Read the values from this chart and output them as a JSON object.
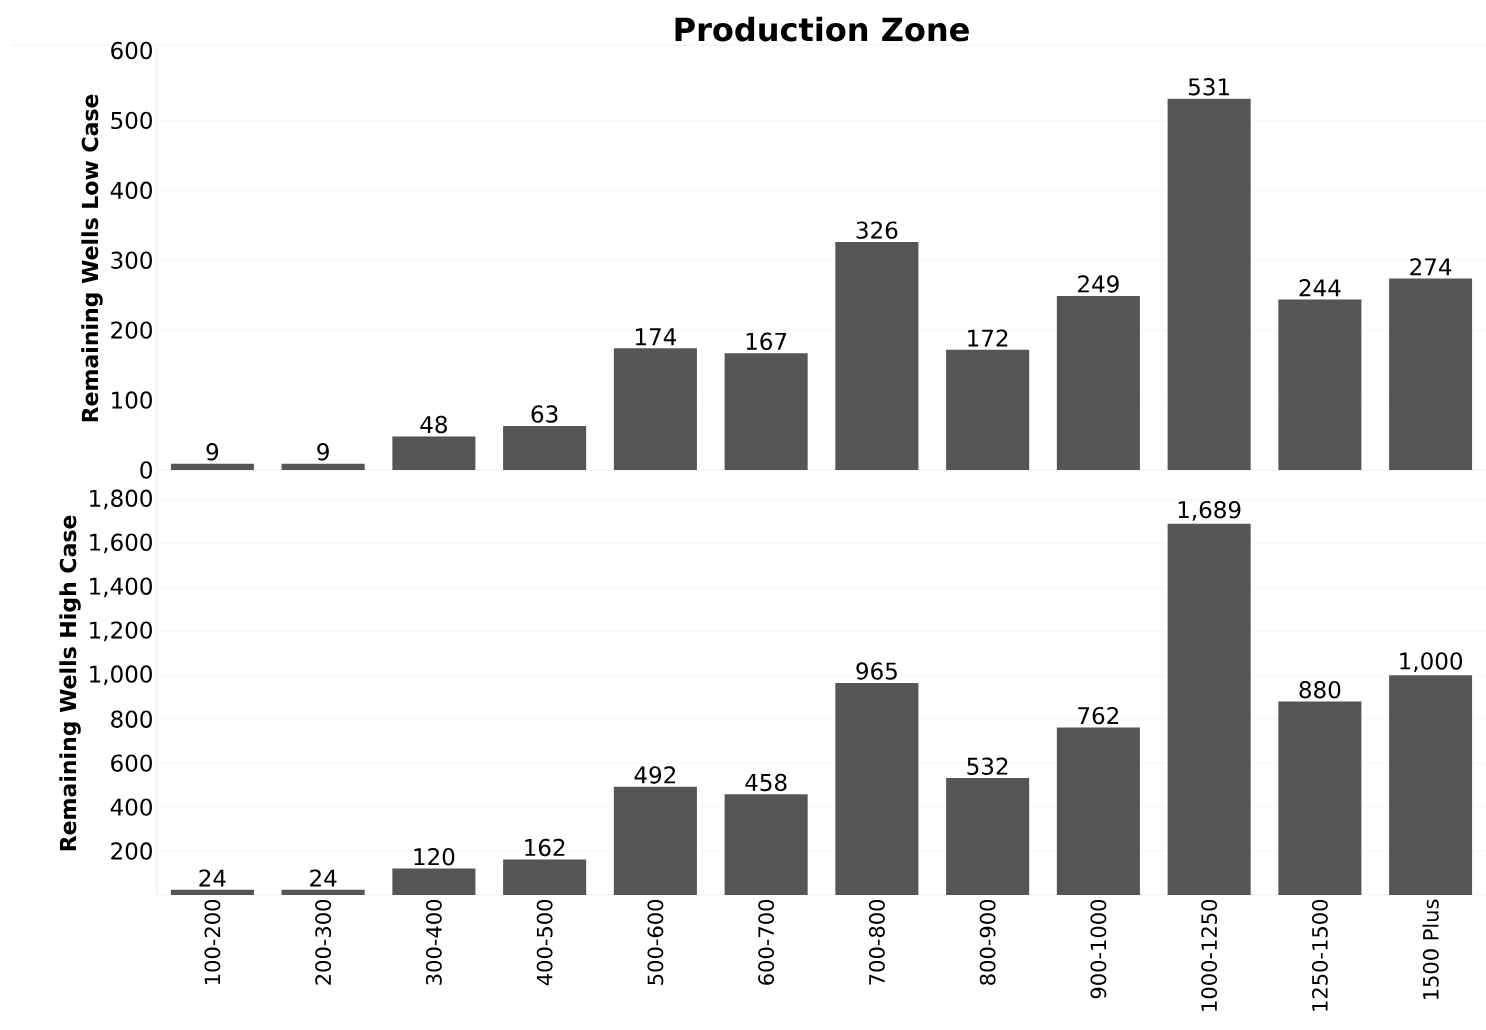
{
  "chart_data": [
    {
      "type": "bar",
      "title": "Production Zone",
      "ylabel": "Remaining Wells Low Case",
      "categories": [
        null,
        null,
        null,
        null,
        null,
        null,
        null,
        null,
        null,
        null,
        null,
        null
      ],
      "values": [
        9,
        9,
        48,
        63,
        174,
        167,
        326,
        172,
        249,
        531,
        244,
        274
      ],
      "color": "#555555",
      "ylim": [
        0,
        605
      ],
      "yticks": [
        0,
        100,
        200,
        300,
        400,
        500,
        600
      ],
      "grid": "y",
      "data_labels": true,
      "tick_labels": "y"
    },
    {
      "type": "bar",
      "ylabel": "Remaining Wells High Case",
      "categories": [
        "100-200",
        "200-300",
        "300-400",
        "400-500",
        "500-600",
        "600-700",
        "700-800",
        "800-900",
        "900-1000",
        "1000-1250",
        "1250-1500",
        "1500 Plus"
      ],
      "values": [
        24,
        24,
        120,
        162,
        492,
        458,
        965,
        532,
        762,
        1689,
        880,
        1000
      ],
      "value_labels": [
        "24",
        "24",
        "120",
        "162",
        "492",
        "458",
        "965",
        "532",
        "762",
        "1,689",
        "880",
        "1,000"
      ],
      "color": "#555555",
      "ylim": [
        0,
        1925
      ],
      "yticks": [
        {
          "value": 200,
          "label": "200"
        },
        {
          "value": 400,
          "label": "400"
        },
        {
          "value": 600,
          "label": "600"
        },
        {
          "value": 800,
          "label": "800"
        },
        {
          "value": 1000,
          "label": "1,000"
        },
        {
          "value": 1200,
          "label": "1,200"
        },
        {
          "value": 1400,
          "label": "1,400"
        },
        {
          "value": 1600,
          "label": "1,600"
        },
        {
          "value": 1800,
          "label": "1,800"
        }
      ],
      "grid": "y"
    }
  ]
}
